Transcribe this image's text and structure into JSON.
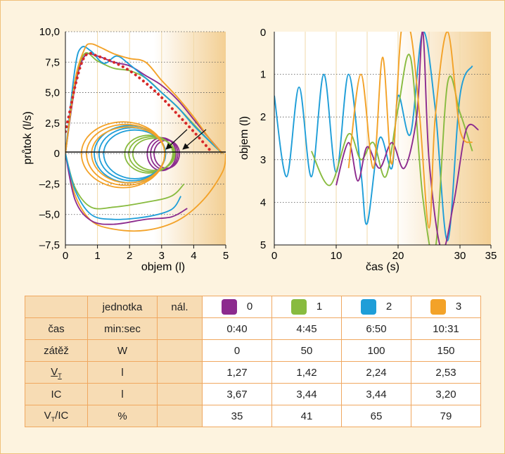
{
  "chart_data": [
    {
      "type": "line",
      "xlabel": "objem (l)",
      "ylabel": "průtok (l/s)",
      "xlim": [
        0,
        5
      ],
      "ylim": [
        -7.5,
        10
      ],
      "x_ticks": [
        "0",
        "1",
        "2",
        "3",
        "4",
        "5"
      ],
      "y_ticks": [
        "10,0",
        "7,5",
        "5,0",
        "2,5",
        "0",
        "–2,5",
        "–5,0",
        "–7,5"
      ],
      "grid": "horizontal dotted",
      "series": [
        {
          "color": "#8c2b8e",
          "x": [
            0,
            0.3,
            0.6,
            1.0,
            1.5,
            2.0,
            2.5,
            3.0,
            3.5,
            4.0,
            4.5,
            4.9
          ],
          "y": [
            0,
            5.5,
            8.0,
            8.0,
            7.5,
            7.2,
            6.4,
            5.6,
            4.4,
            2.8,
            1.2,
            0
          ]
        },
        {
          "color": "#88bb3f",
          "x": [
            0,
            0.3,
            0.6,
            1.0,
            1.5,
            2.0,
            2.5,
            3.0,
            3.5,
            4.0,
            4.5,
            4.9
          ],
          "y": [
            0,
            5.8,
            8.2,
            7.6,
            7.0,
            6.8,
            6.2,
            5.0,
            3.8,
            2.4,
            1.0,
            0
          ]
        },
        {
          "color": "#1f9ed8",
          "x": [
            0,
            0.3,
            0.5,
            0.8,
            1.2,
            1.6,
            2.0,
            2.5,
            3.0,
            3.5,
            4.0,
            4.5,
            4.9
          ],
          "y": [
            0,
            7.0,
            8.7,
            8.4,
            7.4,
            8.0,
            7.3,
            6.2,
            5.0,
            3.8,
            2.3,
            1.0,
            0
          ]
        },
        {
          "color": "#f3a228",
          "x": [
            0,
            0.3,
            0.6,
            0.8,
            1.1,
            1.5,
            2.0,
            2.5,
            3.0,
            3.5,
            4.0,
            4.5,
            4.9
          ],
          "y": [
            0,
            6.0,
            8.6,
            9.0,
            8.7,
            8.2,
            7.8,
            7.5,
            6.0,
            4.6,
            3.0,
            1.2,
            0
          ]
        },
        {
          "color": "#d62828",
          "name_hidden": true,
          "x": [
            0,
            0.15,
            0.3,
            0.5,
            0.7,
            1.0,
            1.5,
            2.0,
            2.5,
            3.0,
            3.5,
            4.0,
            4.5
          ],
          "y": [
            1.8,
            3.6,
            5.5,
            7.4,
            8.2,
            8.0,
            7.5,
            6.8,
            5.8,
            4.6,
            3.2,
            1.8,
            0.3
          ]
        }
      ],
      "tidal_loops": {
        "colors": [
          "#8c2b8e",
          "#88bb3f",
          "#1f9ed8",
          "#f3a228"
        ],
        "centers": [
          3.0,
          2.6,
          2.0,
          1.8
        ],
        "half_widths": [
          0.45,
          0.75,
          1.1,
          1.3
        ],
        "up": [
          1.3,
          1.5,
          2.3,
          2.6
        ],
        "down": [
          1.4,
          1.6,
          2.4,
          2.8
        ]
      }
    },
    {
      "type": "line",
      "xlabel": "čas (s)",
      "ylabel": "objem (l)",
      "xlim": [
        0,
        35
      ],
      "ylim": [
        5,
        0
      ],
      "x_ticks": [
        "0",
        "10",
        "20",
        "30",
        "35"
      ],
      "y_ticks": [
        "0",
        "1",
        "2",
        "3",
        "4",
        "5"
      ],
      "series": [
        {
          "color": "#1f9ed8",
          "x": [
            0,
            2,
            4,
            6,
            8,
            10,
            12,
            14,
            15,
            17,
            19,
            20,
            22,
            24,
            26,
            28,
            30,
            32
          ],
          "y": [
            1.5,
            3.4,
            1.3,
            3.4,
            1.0,
            3.3,
            1.0,
            3.3,
            4.5,
            2.5,
            3.2,
            1.5,
            2.4,
            0.0,
            1.8,
            4.9,
            1.5,
            0.8
          ]
        },
        {
          "color": "#88bb3f",
          "x": [
            6,
            9,
            12,
            14,
            16,
            18,
            20,
            22,
            24,
            26,
            28,
            30,
            32
          ],
          "y": [
            2.8,
            3.6,
            2.4,
            3.0,
            2.6,
            3.4,
            1.8,
            0.6,
            3.9,
            5.1,
            1.2,
            1.9,
            2.8
          ]
        },
        {
          "color": "#8c2b8e",
          "x": [
            10,
            12,
            13.5,
            15,
            17,
            19,
            21,
            23,
            24,
            25,
            27,
            29,
            31,
            33
          ],
          "y": [
            3.6,
            2.6,
            3.5,
            2.7,
            3.2,
            2.6,
            3.2,
            2.0,
            0.0,
            3.0,
            5.1,
            4.0,
            2.3,
            2.3
          ]
        },
        {
          "color": "#f3a228",
          "x": [
            12,
            14,
            16,
            17.5,
            19,
            20.5,
            22,
            23.5,
            25,
            26,
            28,
            30,
            32
          ],
          "y": [
            3.2,
            1.0,
            3.2,
            0.6,
            3.1,
            0.0,
            0.0,
            2.0,
            4.6,
            2.0,
            0.0,
            2.3,
            2.6
          ]
        }
      ]
    }
  ],
  "table": {
    "headers": [
      "",
      "jednotka",
      "nál.",
      "0",
      "1",
      "2",
      "3"
    ],
    "header_colors": [
      "#8c2b8e",
      "#88bb3f",
      "#1f9ed8",
      "#f3a228"
    ],
    "rows": [
      {
        "label": "čas",
        "unit": "min:sec",
        "nal": "",
        "values": [
          "0:40",
          "4:45",
          "6:50",
          "10:31"
        ]
      },
      {
        "label": "zátěž",
        "unit": "W",
        "nal": "",
        "values": [
          "0",
          "50",
          "100",
          "150"
        ]
      },
      {
        "label": "V",
        "label_sub": "T",
        "underline": true,
        "unit": "l",
        "nal": "",
        "values": [
          "1,27",
          "1,42",
          "2,24",
          "2,53"
        ]
      },
      {
        "label": "IC",
        "unit": "l",
        "nal": "",
        "values": [
          "3,67",
          "3,44",
          "3,44",
          "3,20"
        ]
      },
      {
        "label": "V",
        "label_sub": "T",
        "label_suffix": "/IC",
        "unit": "%",
        "nal": "",
        "values": [
          "35",
          "41",
          "65",
          "79"
        ]
      }
    ]
  }
}
